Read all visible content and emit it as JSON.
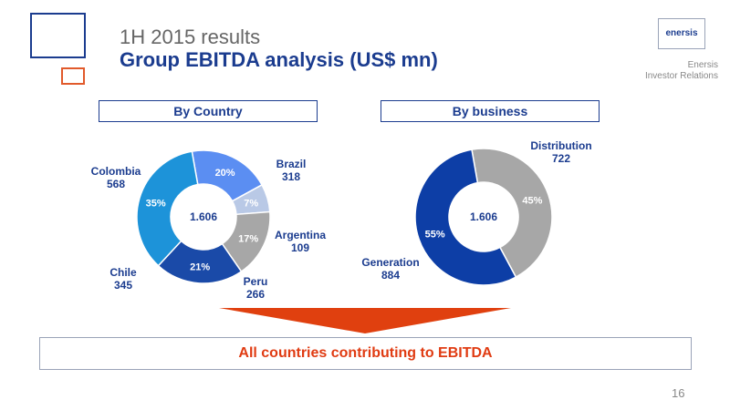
{
  "header": {
    "subtitle": "1H 2015 results",
    "title": "Group EBITDA analysis (US$ mn)"
  },
  "logo": {
    "text": "enersis",
    "line1": "Enersis",
    "line2": "Investor Relations"
  },
  "chart_data": [
    {
      "type": "pie",
      "title": "By Country",
      "center_label": "1.606",
      "slices": [
        {
          "name": "Brazil",
          "value": 318,
          "percent_label": "20%",
          "color": "#5b8ef2"
        },
        {
          "name": "Argentina",
          "value": 109,
          "percent_label": "7%",
          "color": "#b9c9e6"
        },
        {
          "name": "Peru",
          "value": 266,
          "percent_label": "17%",
          "color": "#a7a7a7"
        },
        {
          "name": "Chile",
          "value": 345,
          "percent_label": "21%",
          "color": "#1a4aa8"
        },
        {
          "name": "Colombia",
          "value": 568,
          "percent_label": "35%",
          "color": "#1d93d9"
        }
      ]
    },
    {
      "type": "pie",
      "title": "By business",
      "center_label": "1.606",
      "slices": [
        {
          "name": "Distribution",
          "value": 722,
          "percent_label": "45%",
          "color": "#a7a7a7"
        },
        {
          "name": "Generation",
          "value": 884,
          "percent_label": "55%",
          "color": "#0d3ea6"
        }
      ]
    }
  ],
  "conclusion": "All countries contributing to EBITDA",
  "page_number": "16"
}
